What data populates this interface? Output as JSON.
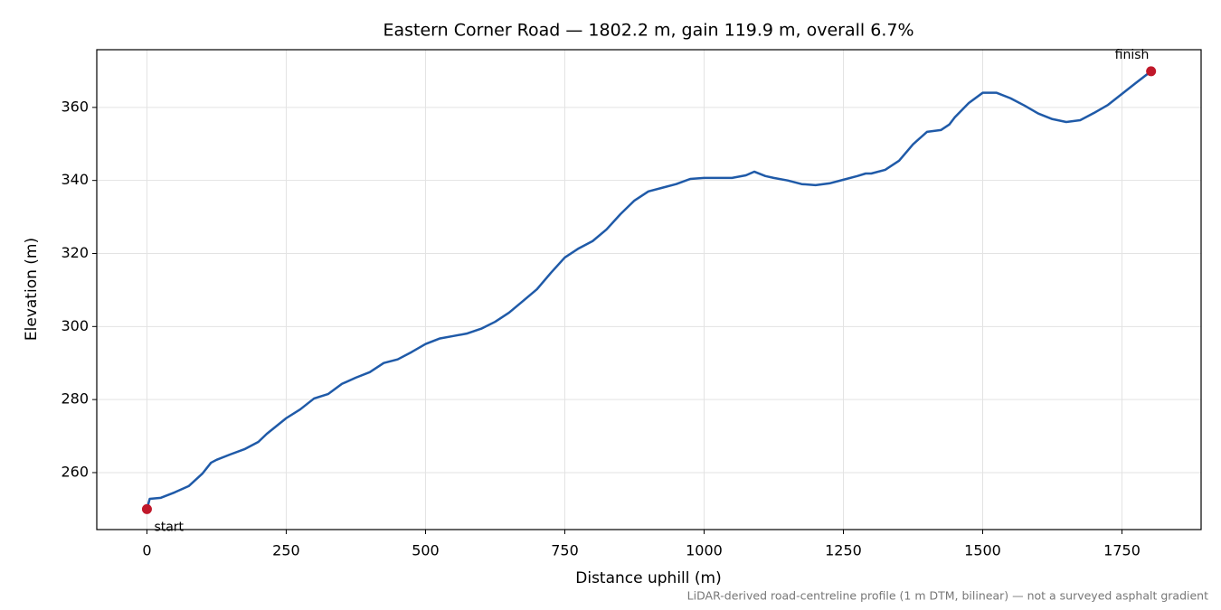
{
  "chart_data": {
    "type": "line",
    "title": "Eastern Corner Road — 1802.2 m, gain 119.9 m, overall 6.7%",
    "x_label": "Distance uphill (m)",
    "y_label": "Elevation (m)",
    "footnote": "LiDAR-derived road-centreline profile (1 m DTM, bilinear) — not a surveyed asphalt gradient",
    "x": [
      0,
      5,
      25,
      50,
      75,
      100,
      115,
      125,
      150,
      175,
      200,
      215,
      250,
      275,
      300,
      325,
      350,
      375,
      400,
      425,
      450,
      475,
      500,
      525,
      550,
      575,
      600,
      625,
      650,
      675,
      700,
      725,
      750,
      775,
      800,
      825,
      850,
      875,
      900,
      925,
      950,
      975,
      1000,
      1025,
      1050,
      1075,
      1090,
      1110,
      1125,
      1150,
      1175,
      1200,
      1225,
      1250,
      1275,
      1290,
      1300,
      1325,
      1350,
      1375,
      1400,
      1425,
      1440,
      1450,
      1475,
      1500,
      1525,
      1550,
      1575,
      1600,
      1625,
      1650,
      1675,
      1700,
      1725,
      1750,
      1775,
      1802.2
    ],
    "series": [
      {
        "color": "#1f5aa8",
        "values": [
          250,
          252.8,
          253.1,
          254.6,
          256.3,
          259.8,
          262.7,
          263.5,
          265,
          266.4,
          268.4,
          270.6,
          274.9,
          277.3,
          280.3,
          281.5,
          284.3,
          286,
          287.5,
          290,
          291,
          293,
          295.2,
          296.7,
          297.4,
          298.1,
          299.4,
          301.3,
          303.8,
          307,
          310.2,
          314.7,
          318.9,
          321.4,
          323.4,
          326.6,
          330.8,
          334.5,
          337,
          338,
          339,
          340.4,
          340.7,
          340.7,
          340.7,
          341.4,
          342.4,
          341.2,
          340.7,
          340,
          339,
          338.7,
          339.2,
          340.2,
          341.2,
          341.9,
          341.9,
          342.9,
          345.4,
          349.9,
          353.3,
          353.8,
          355.3,
          357.3,
          361.2,
          364,
          364,
          362.5,
          360.5,
          358.3,
          356.8,
          356,
          356.5,
          358.5,
          360.7,
          363.7,
          366.7,
          369.9
        ]
      }
    ],
    "markers": {
      "color": "#c0182a",
      "labels": [
        "start",
        "finish"
      ],
      "x": [
        0,
        1802.2
      ],
      "values": [
        250,
        369.9
      ]
    },
    "xlim": [
      -90,
      1892
    ],
    "ylim": [
      244.4,
      375.8
    ],
    "xticks": [
      0,
      250,
      500,
      750,
      1000,
      1250,
      1500,
      1750
    ],
    "yticks": [
      260,
      280,
      300,
      320,
      340,
      360
    ],
    "grid": true
  }
}
